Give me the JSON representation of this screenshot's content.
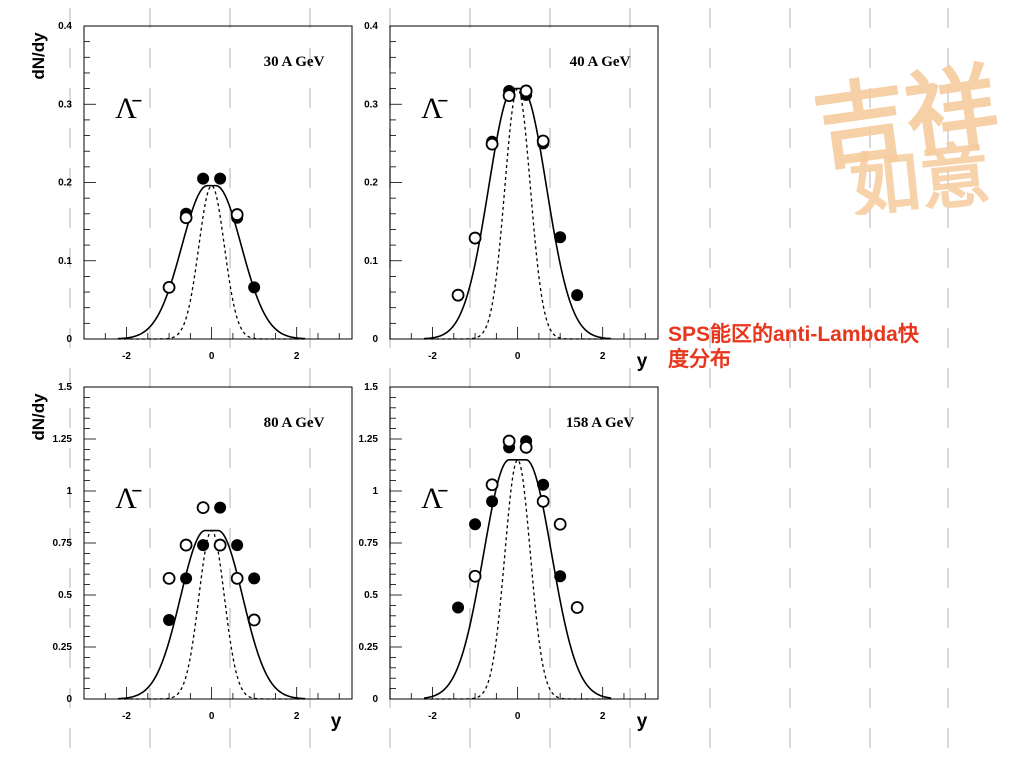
{
  "slide": {
    "caption_line1": "SPS能区的anti-Lambda快",
    "caption_line2": "度分布",
    "caption_color": "#e8361c",
    "logo_text": "吉祥如意",
    "logo_color": "#f6cc9e"
  },
  "chart_data": [
    {
      "type": "scatter",
      "title": "30 A GeV",
      "particle_label": "Λ̄",
      "xlabel": "",
      "ylabel": "dN/dy",
      "xlim": [
        -3,
        3.3
      ],
      "ylim": [
        0,
        0.4
      ],
      "x_ticks": [
        -2,
        0,
        2
      ],
      "y_ticks": [
        0,
        0.1,
        0.2,
        0.3,
        0.4
      ],
      "y_tick_labels": [
        "0",
        "0.1",
        "0.2",
        "0.3",
        "0.4"
      ],
      "series": [
        {
          "marker": "filled-circle",
          "points": [
            [
              -0.2,
              0.205
            ],
            [
              0.2,
              0.205
            ],
            [
              -0.6,
              0.16
            ],
            [
              0.6,
              0.155
            ],
            [
              1.0,
              0.066
            ]
          ]
        },
        {
          "marker": "open-circle",
          "points": [
            [
              -0.6,
              0.155
            ],
            [
              0.6,
              0.159
            ],
            [
              -1.0,
              0.066
            ]
          ]
        },
        {
          "style": "solid-curve",
          "amplitude": 0.196,
          "sigma": 0.6,
          "plateau": 0.1
        },
        {
          "style": "dashed-curve",
          "amplitude": 0.196,
          "sigma": 0.3,
          "plateau": 0
        }
      ]
    },
    {
      "type": "scatter",
      "title": "40 A GeV",
      "particle_label": "Λ̄",
      "xlabel": "y",
      "ylabel": "",
      "xlim": [
        -3,
        3.3
      ],
      "ylim": [
        0,
        0.4
      ],
      "x_ticks": [
        -2,
        0,
        2
      ],
      "y_ticks": [
        0,
        0.1,
        0.2,
        0.3,
        0.4
      ],
      "y_tick_labels": [
        "0",
        "0.1",
        "0.2",
        "0.3",
        "0.4"
      ],
      "series": [
        {
          "marker": "filled-circle",
          "points": [
            [
              -0.2,
              0.317
            ],
            [
              0.2,
              0.312
            ],
            [
              -0.6,
              0.252
            ],
            [
              0.6,
              0.25
            ],
            [
              1.0,
              0.13
            ],
            [
              1.4,
              0.056
            ]
          ]
        },
        {
          "marker": "open-circle",
          "points": [
            [
              -0.2,
              0.311
            ],
            [
              0.2,
              0.317
            ],
            [
              -0.6,
              0.249
            ],
            [
              0.6,
              0.253
            ],
            [
              -1.0,
              0.129
            ],
            [
              -1.4,
              0.056
            ]
          ]
        },
        {
          "style": "solid-curve",
          "amplitude": 0.32,
          "sigma": 0.58,
          "plateau": 0.1
        },
        {
          "style": "dashed-curve",
          "amplitude": 0.32,
          "sigma": 0.3,
          "plateau": 0
        }
      ]
    },
    {
      "type": "scatter",
      "title": "80 A GeV",
      "particle_label": "Λ̄",
      "xlabel": "y",
      "ylabel": "dN/dy",
      "xlim": [
        -3,
        3.3
      ],
      "ylim": [
        0,
        1.5
      ],
      "x_ticks": [
        -2,
        0,
        2
      ],
      "y_ticks": [
        0,
        0.25,
        0.5,
        0.75,
        1,
        1.25,
        1.5
      ],
      "y_tick_labels": [
        "0",
        "0.25",
        "0.5",
        "0.75",
        "1",
        "1.25",
        "1.5"
      ],
      "series": [
        {
          "marker": "filled-circle",
          "points": [
            [
              -0.2,
              0.74
            ],
            [
              0.2,
              0.92
            ],
            [
              -0.6,
              0.58
            ],
            [
              0.6,
              0.74
            ],
            [
              -1.0,
              0.38
            ],
            [
              1.0,
              0.58
            ]
          ]
        },
        {
          "marker": "open-circle",
          "points": [
            [
              -0.2,
              0.92
            ],
            [
              0.2,
              0.74
            ],
            [
              -0.6,
              0.74
            ],
            [
              0.6,
              0.58
            ],
            [
              -1.0,
              0.58
            ],
            [
              1.0,
              0.38
            ]
          ]
        },
        {
          "style": "solid-curve",
          "amplitude": 0.81,
          "sigma": 0.58,
          "plateau": 0.15
        },
        {
          "style": "dashed-curve",
          "amplitude": 0.81,
          "sigma": 0.3,
          "plateau": 0
        }
      ]
    },
    {
      "type": "scatter",
      "title": "158 A GeV",
      "particle_label": "Λ̄",
      "xlabel": "y",
      "ylabel": "",
      "xlim": [
        -3,
        3.3
      ],
      "ylim": [
        0,
        1.5
      ],
      "x_ticks": [
        -2,
        0,
        2
      ],
      "y_ticks": [
        0,
        0.25,
        0.5,
        0.75,
        1,
        1.25,
        1.5
      ],
      "y_tick_labels": [
        "0",
        "0.25",
        "0.5",
        "0.75",
        "1",
        "1.25",
        "1.5"
      ],
      "series": [
        {
          "marker": "filled-circle",
          "points": [
            [
              -0.2,
              1.21
            ],
            [
              0.2,
              1.24
            ],
            [
              -0.6,
              0.95
            ],
            [
              0.6,
              1.03
            ],
            [
              -1.0,
              0.84
            ],
            [
              1.0,
              0.59
            ],
            [
              -1.4,
              0.44
            ]
          ]
        },
        {
          "marker": "open-circle",
          "points": [
            [
              -0.2,
              1.24
            ],
            [
              0.2,
              1.21
            ],
            [
              -0.6,
              1.03
            ],
            [
              0.6,
              0.95
            ],
            [
              -1.0,
              0.59
            ],
            [
              1.0,
              0.84
            ],
            [
              1.4,
              0.44
            ]
          ]
        },
        {
          "style": "solid-curve",
          "amplitude": 1.15,
          "sigma": 0.6,
          "plateau": 0.2
        },
        {
          "style": "dashed-curve",
          "amplitude": 1.15,
          "sigma": 0.3,
          "plateau": 0
        }
      ]
    }
  ]
}
